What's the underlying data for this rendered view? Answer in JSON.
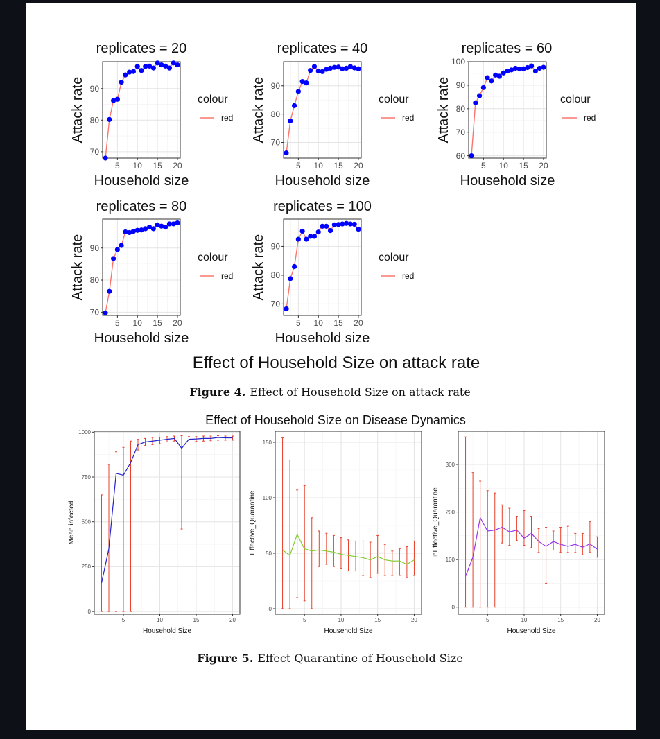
{
  "figure4": {
    "main_title": "Effect of Household Size on attack rate",
    "caption_label": "Figure 4.",
    "caption_text": "Effect of Household Size on attack rate"
  },
  "figure5": {
    "main_title": "Effect of Household Size on Disease Dynamics",
    "caption_label": "Figure 5.",
    "caption_text": "Effect Quarantine of Household Size"
  },
  "colors": {
    "fig4_line": "#f8766d",
    "fig4_point": "#0000ff",
    "errorbar": "#e8402a",
    "mean_line": "#2222cc",
    "eff_line": "#7fcc2a",
    "ineff_line": "#9933ee"
  },
  "chart_data": [
    {
      "type": "line",
      "title": "replicates = 20",
      "xlabel": "Household size",
      "ylabel": "Attack rate",
      "xlim": [
        1.3,
        20.7
      ],
      "ylim": [
        68,
        98.5
      ],
      "xticks": [
        5,
        10,
        15,
        20
      ],
      "yticks": [
        70,
        80,
        90
      ],
      "legend": {
        "title": "colour",
        "label": "red"
      },
      "x": [
        2,
        3,
        4,
        5,
        6,
        7,
        8,
        9,
        10,
        11,
        12,
        13,
        14,
        15,
        16,
        17,
        18,
        19,
        20
      ],
      "values": [
        68,
        80.2,
        86.2,
        86.6,
        92,
        94.3,
        95.2,
        95.4,
        97,
        95.7,
        97,
        97.1,
        96.5,
        98.1,
        97.5,
        97.1,
        96.5,
        98.1,
        97.5
      ]
    },
    {
      "type": "line",
      "title": "replicates = 40",
      "xlabel": "Household size",
      "ylabel": "Attack rate",
      "xlim": [
        1.3,
        20.7
      ],
      "ylim": [
        64.5,
        98.5
      ],
      "xticks": [
        5,
        10,
        15,
        20
      ],
      "yticks": [
        70,
        80,
        90
      ],
      "legend": {
        "title": "colour",
        "label": "red"
      },
      "x": [
        2,
        3,
        4,
        5,
        6,
        7,
        8,
        9,
        10,
        11,
        12,
        13,
        14,
        15,
        16,
        17,
        18,
        19,
        20
      ],
      "values": [
        66.3,
        77.6,
        83,
        88,
        91.5,
        91,
        95.4,
        96.8,
        95.2,
        95,
        95.8,
        96.2,
        96.5,
        96.6,
        96,
        96.2,
        96.8,
        96.3,
        96
      ]
    },
    {
      "type": "line",
      "title": "replicates = 60",
      "xlabel": "Household size",
      "ylabel": "Attack rate",
      "xlim": [
        1.3,
        20.7
      ],
      "ylim": [
        59,
        100
      ],
      "xticks": [
        5,
        10,
        15,
        20
      ],
      "yticks": [
        60,
        70,
        80,
        90,
        100
      ],
      "legend": {
        "title": "colour",
        "label": "red"
      },
      "x": [
        2,
        3,
        4,
        5,
        6,
        7,
        8,
        9,
        10,
        11,
        12,
        13,
        14,
        15,
        16,
        17,
        18,
        19,
        20
      ],
      "values": [
        60,
        82.5,
        85.5,
        89,
        93.2,
        91.8,
        94.3,
        93.8,
        95.2,
        96,
        96.5,
        97.2,
        96.9,
        97,
        97.5,
        98.2,
        96,
        97.2,
        97.6
      ]
    },
    {
      "type": "line",
      "title": "replicates = 80",
      "xlabel": "Household size",
      "ylabel": "Attack rate",
      "xlim": [
        1.3,
        20.7
      ],
      "ylim": [
        69,
        99
      ],
      "xticks": [
        5,
        10,
        15,
        20
      ],
      "yticks": [
        70,
        80,
        90
      ],
      "legend": {
        "title": "colour",
        "label": "red"
      },
      "x": [
        2,
        3,
        4,
        5,
        6,
        7,
        8,
        9,
        10,
        11,
        12,
        13,
        14,
        15,
        16,
        17,
        18,
        19,
        20
      ],
      "values": [
        69.8,
        76.5,
        86.7,
        89.5,
        90.8,
        95,
        94.8,
        95.2,
        95.5,
        95.6,
        96,
        96.5,
        96,
        97.2,
        96.8,
        96.5,
        97.5,
        97.5,
        97.8
      ]
    },
    {
      "type": "line",
      "title": "replicates = 100",
      "xlabel": "Household size",
      "ylabel": "Attack rate",
      "xlim": [
        1.3,
        20.7
      ],
      "ylim": [
        66,
        99.5
      ],
      "xticks": [
        5,
        10,
        15,
        20
      ],
      "yticks": [
        70,
        80,
        90
      ],
      "legend": {
        "title": "colour",
        "label": "red"
      },
      "x": [
        2,
        3,
        4,
        5,
        6,
        7,
        8,
        9,
        10,
        11,
        12,
        13,
        14,
        15,
        16,
        17,
        18,
        19,
        20
      ],
      "values": [
        68.3,
        78.8,
        83,
        92.5,
        95.3,
        92.5,
        93.5,
        93.5,
        95,
        97,
        97,
        95.5,
        97.5,
        97.6,
        97.8,
        98,
        97.8,
        97.7,
        96
      ]
    },
    {
      "type": "line",
      "title": "",
      "xlabel": "Household Size",
      "ylabel": "Mean infected",
      "xlim": [
        1,
        21
      ],
      "ylim": [
        -15,
        1005
      ],
      "xticks": [
        5,
        10,
        15,
        20
      ],
      "yticks": [
        0,
        250,
        500,
        750,
        1000
      ],
      "x": [
        2,
        3,
        4,
        5,
        6,
        7,
        8,
        9,
        10,
        11,
        12,
        13,
        14,
        15,
        16,
        17,
        18,
        19,
        20
      ],
      "values": [
        160,
        350,
        770,
        760,
        830,
        930,
        945,
        950,
        955,
        960,
        965,
        910,
        960,
        962,
        965,
        965,
        970,
        968,
        968
      ],
      "err_low": [
        0,
        0,
        0,
        0,
        0,
        900,
        925,
        930,
        935,
        945,
        950,
        460,
        945,
        948,
        950,
        952,
        955,
        955,
        955
      ],
      "err_high": [
        650,
        820,
        890,
        915,
        950,
        960,
        965,
        970,
        972,
        975,
        978,
        980,
        975,
        975,
        978,
        978,
        980,
        978,
        978
      ]
    },
    {
      "type": "line",
      "title": "",
      "xlabel": "Household Size",
      "ylabel": "Effective_Quarantine",
      "xlim": [
        1,
        21
      ],
      "ylim": [
        -5,
        160
      ],
      "xticks": [
        5,
        10,
        15,
        20
      ],
      "yticks": [
        0,
        50,
        100,
        150
      ],
      "x": [
        2,
        3,
        4,
        5,
        6,
        7,
        8,
        9,
        10,
        11,
        12,
        13,
        14,
        15,
        16,
        17,
        18,
        19,
        20
      ],
      "values": [
        53,
        48,
        67,
        54,
        52,
        53,
        52,
        51,
        49,
        48,
        47,
        46,
        44,
        47,
        44,
        43,
        43,
        40,
        44
      ],
      "err_low": [
        0,
        0,
        10,
        7,
        0,
        38,
        40,
        38,
        36,
        34,
        34,
        30,
        28,
        32,
        30,
        30,
        30,
        28,
        30
      ],
      "err_high": [
        154,
        134,
        107,
        111,
        82,
        70,
        68,
        66,
        64,
        62,
        61,
        61,
        60,
        66,
        58,
        52,
        54,
        56,
        61
      ]
    },
    {
      "type": "line",
      "title": "",
      "xlabel": "Household Size",
      "ylabel": "InEffective_Quarantine",
      "xlim": [
        1,
        21
      ],
      "ylim": [
        -15,
        370
      ],
      "xticks": [
        5,
        10,
        15,
        20
      ],
      "yticks": [
        0,
        100,
        200,
        300
      ],
      "x": [
        2,
        3,
        4,
        5,
        6,
        7,
        8,
        9,
        10,
        11,
        12,
        13,
        14,
        15,
        16,
        17,
        18,
        19,
        20
      ],
      "values": [
        65,
        105,
        188,
        160,
        162,
        168,
        158,
        162,
        145,
        155,
        138,
        128,
        138,
        132,
        128,
        132,
        126,
        133,
        122
      ],
      "err_low": [
        0,
        0,
        0,
        0,
        0,
        135,
        130,
        140,
        130,
        125,
        115,
        50,
        120,
        115,
        115,
        115,
        110,
        115,
        105
      ],
      "err_high": [
        358,
        283,
        265,
        245,
        240,
        215,
        208,
        190,
        203,
        190,
        165,
        168,
        160,
        168,
        170,
        155,
        155,
        180,
        148
      ]
    }
  ]
}
